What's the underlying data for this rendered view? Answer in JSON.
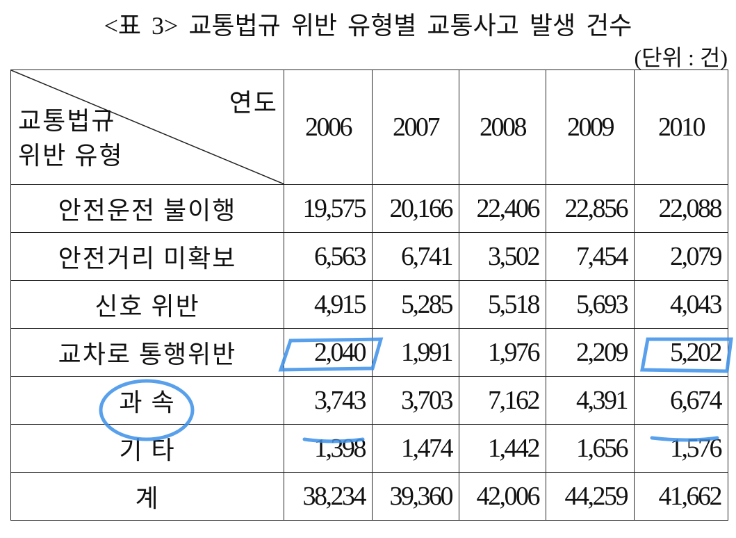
{
  "title": "<표 3> 교통법규 위반 유형별 교통사고 발생 건수",
  "unit": "(단위 : 건)",
  "table": {
    "corner": {
      "top": "연도",
      "bottom": [
        "교통법규",
        "위반 유형"
      ]
    },
    "columns": [
      "2006",
      "2007",
      "2008",
      "2009",
      "2010"
    ],
    "rows": [
      {
        "label": "안전운전 불이행",
        "values": [
          "19,575",
          "20,166",
          "22,406",
          "22,856",
          "22,088"
        ]
      },
      {
        "label": "안전거리 미확보",
        "values": [
          "6,563",
          "6,741",
          "3,502",
          "7,454",
          "2,079"
        ]
      },
      {
        "label": "신호 위반",
        "values": [
          "4,915",
          "5,285",
          "5,518",
          "5,693",
          "4,043"
        ]
      },
      {
        "label": "교차로 통행위반",
        "values": [
          "2,040",
          "1,991",
          "1,976",
          "2,209",
          "5,202"
        ]
      },
      {
        "label": "과 속",
        "values": [
          "3,743",
          "3,703",
          "7,162",
          "4,391",
          "6,674"
        ]
      },
      {
        "label": "기 타",
        "values": [
          "1,398",
          "1,474",
          "1,442",
          "1,656",
          "1,576"
        ]
      },
      {
        "label": "계",
        "values": [
          "38,234",
          "39,360",
          "42,006",
          "44,259",
          "41,662"
        ]
      }
    ]
  }
}
